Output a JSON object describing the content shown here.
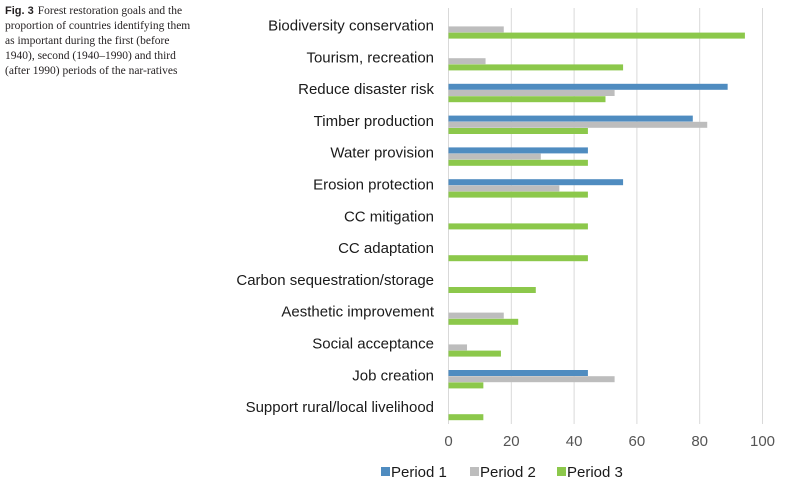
{
  "caption": {
    "figure_label": "Fig. 3",
    "text": "Forest restoration goals and the proportion of countries identifying them as important during the first (before 1940), second (1940–1990) and third (after 1990) periods of the nar-ratives"
  },
  "colors": {
    "period1": "#4f8cc0",
    "period2": "#bdbdbd",
    "period3": "#8cc84b",
    "grid": "#d9d9d9"
  },
  "chart_data": {
    "type": "bar",
    "orientation": "horizontal",
    "title": "",
    "xlabel": "",
    "ylabel": "",
    "xlim": [
      0,
      100
    ],
    "xticks": [
      0,
      20,
      40,
      60,
      80,
      100
    ],
    "grid": true,
    "legend_position": "bottom",
    "categories": [
      "Biodiversity conservation",
      "Tourism, recreation",
      "Reduce disaster risk",
      "Timber production",
      "Water provision",
      "Erosion protection",
      "CC mitigation",
      "CC adaptation",
      "Carbon sequestration/storage",
      "Aesthetic improvement",
      "Social acceptance",
      "Job creation",
      "Support rural/local livelihood"
    ],
    "series": [
      {
        "name": "Period 1",
        "values": [
          0,
          0,
          88.9,
          77.8,
          44.4,
          55.6,
          0,
          0,
          0,
          0,
          0,
          44.4,
          0
        ]
      },
      {
        "name": "Period 2",
        "values": [
          17.6,
          11.8,
          52.9,
          82.4,
          29.4,
          35.3,
          0,
          0,
          0,
          17.6,
          5.9,
          52.9,
          0
        ]
      },
      {
        "name": "Period 3",
        "values": [
          94.4,
          55.6,
          50.0,
          44.4,
          44.4,
          44.4,
          44.4,
          44.4,
          27.8,
          22.2,
          16.7,
          11.1,
          11.1
        ]
      }
    ]
  }
}
